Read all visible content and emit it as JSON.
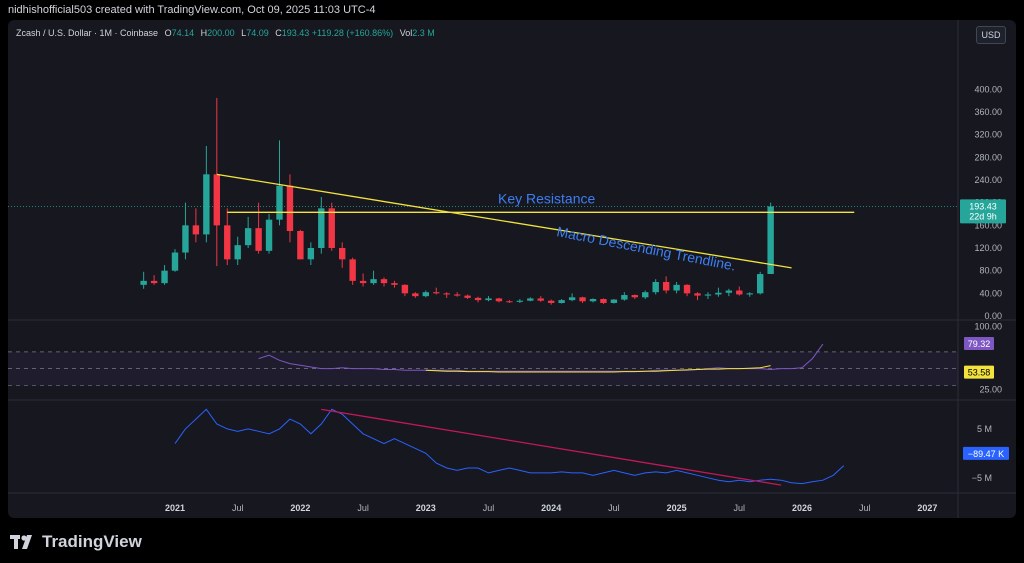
{
  "header": {
    "text": "nidhishofficial503 created with TradingView.com, Oct 09, 2025 11:03 UTC-4"
  },
  "legend": {
    "symbol": "Zcash / U.S. Dollar · 1M · Coinbase",
    "open_label": "O",
    "open": "74.14",
    "high_label": "H",
    "high": "200.00",
    "low_label": "L",
    "low": "74.09",
    "close_label": "C",
    "close": "193.43",
    "change": "+119.28 (+160.86%)",
    "vol_label": "Vol",
    "vol": "2.3 M"
  },
  "currency_button": "USD",
  "footer": {
    "logo_text": "TradingView"
  },
  "colors": {
    "up": "#26a69a",
    "down": "#f23645",
    "trendline": "#f2e33d",
    "annotation": "#3d7ef2",
    "rsi": "#7e57c2",
    "rsi_ma": "#f2e33d",
    "macd": "#2962ff",
    "macd_trend": "#c2185b",
    "background": "#16171f"
  },
  "chart_data": [
    {
      "type": "candlestick",
      "title": "Zcash / U.S. Dollar · 1M · Coinbase",
      "ylim": [
        0,
        420
      ],
      "y_ticks": [
        "400.00",
        "360.00",
        "320.00",
        "280.00",
        "240.00",
        "200.00",
        "160.00",
        "120.00",
        "80.00",
        "40.00",
        "0.00"
      ],
      "x_ticks": [
        "2021",
        "Jul",
        "2022",
        "Jul",
        "2023",
        "Jul",
        "2024",
        "Jul",
        "2025",
        "Jul",
        "2026",
        "Jul",
        "2027"
      ],
      "price_tag": {
        "value": "193.43",
        "countdown": "22d 9h"
      },
      "annotations": [
        "Key Resistance",
        "Macro Descending Trendline."
      ],
      "lines": [
        {
          "name": "descending trendline",
          "from": [
            "2021-05",
            250
          ],
          "to": [
            "2025-12",
            85
          ]
        },
        {
          "name": "key resistance",
          "value": 183,
          "from": "2021-06",
          "to": "2026-06"
        }
      ],
      "candles": [
        {
          "t": "2020-10",
          "o": 55,
          "h": 78,
          "l": 48,
          "c": 62
        },
        {
          "t": "2020-11",
          "o": 62,
          "h": 72,
          "l": 55,
          "c": 58
        },
        {
          "t": "2020-12",
          "o": 58,
          "h": 90,
          "l": 55,
          "c": 80
        },
        {
          "t": "2021-01",
          "o": 80,
          "h": 118,
          "l": 78,
          "c": 112
        },
        {
          "t": "2021-02",
          "o": 112,
          "h": 200,
          "l": 100,
          "c": 160
        },
        {
          "t": "2021-03",
          "o": 160,
          "h": 190,
          "l": 130,
          "c": 144
        },
        {
          "t": "2021-04",
          "o": 144,
          "h": 300,
          "l": 130,
          "c": 250
        },
        {
          "t": "2021-05",
          "o": 250,
          "h": 385,
          "l": 88,
          "c": 160
        },
        {
          "t": "2021-06",
          "o": 160,
          "h": 190,
          "l": 90,
          "c": 100
        },
        {
          "t": "2021-07",
          "o": 100,
          "h": 140,
          "l": 90,
          "c": 125
        },
        {
          "t": "2021-08",
          "o": 125,
          "h": 175,
          "l": 120,
          "c": 155
        },
        {
          "t": "2021-09",
          "o": 155,
          "h": 200,
          "l": 110,
          "c": 115
        },
        {
          "t": "2021-10",
          "o": 115,
          "h": 180,
          "l": 110,
          "c": 170
        },
        {
          "t": "2021-11",
          "o": 170,
          "h": 310,
          "l": 160,
          "c": 230
        },
        {
          "t": "2021-12",
          "o": 230,
          "h": 250,
          "l": 130,
          "c": 150
        },
        {
          "t": "2022-01",
          "o": 150,
          "h": 152,
          "l": 100,
          "c": 100
        },
        {
          "t": "2022-02",
          "o": 100,
          "h": 130,
          "l": 90,
          "c": 120
        },
        {
          "t": "2022-03",
          "o": 120,
          "h": 210,
          "l": 110,
          "c": 190
        },
        {
          "t": "2022-04",
          "o": 190,
          "h": 200,
          "l": 115,
          "c": 120
        },
        {
          "t": "2022-05",
          "o": 120,
          "h": 130,
          "l": 85,
          "c": 100
        },
        {
          "t": "2022-06",
          "o": 100,
          "h": 103,
          "l": 55,
          "c": 62
        },
        {
          "t": "2022-07",
          "o": 62,
          "h": 75,
          "l": 52,
          "c": 58
        },
        {
          "t": "2022-08",
          "o": 58,
          "h": 80,
          "l": 55,
          "c": 65
        },
        {
          "t": "2022-09",
          "o": 65,
          "h": 68,
          "l": 52,
          "c": 58
        },
        {
          "t": "2022-10",
          "o": 58,
          "h": 62,
          "l": 50,
          "c": 55
        },
        {
          "t": "2022-11",
          "o": 55,
          "h": 56,
          "l": 35,
          "c": 40
        },
        {
          "t": "2022-12",
          "o": 40,
          "h": 42,
          "l": 32,
          "c": 35
        },
        {
          "t": "2023-01",
          "o": 35,
          "h": 45,
          "l": 33,
          "c": 42
        },
        {
          "t": "2023-02",
          "o": 42,
          "h": 50,
          "l": 38,
          "c": 40
        },
        {
          "t": "2023-03",
          "o": 40,
          "h": 42,
          "l": 32,
          "c": 38
        },
        {
          "t": "2023-04",
          "o": 38,
          "h": 42,
          "l": 34,
          "c": 36
        },
        {
          "t": "2023-05",
          "o": 36,
          "h": 38,
          "l": 30,
          "c": 32
        },
        {
          "t": "2023-06",
          "o": 32,
          "h": 34,
          "l": 24,
          "c": 28
        },
        {
          "t": "2023-07",
          "o": 28,
          "h": 35,
          "l": 26,
          "c": 31
        },
        {
          "t": "2023-08",
          "o": 31,
          "h": 32,
          "l": 24,
          "c": 26
        },
        {
          "t": "2023-09",
          "o": 26,
          "h": 28,
          "l": 23,
          "c": 25
        },
        {
          "t": "2023-10",
          "o": 25,
          "h": 30,
          "l": 23,
          "c": 27
        },
        {
          "t": "2023-11",
          "o": 27,
          "h": 33,
          "l": 26,
          "c": 31
        },
        {
          "t": "2023-12",
          "o": 31,
          "h": 35,
          "l": 25,
          "c": 27
        },
        {
          "t": "2024-01",
          "o": 27,
          "h": 29,
          "l": 20,
          "c": 23
        },
        {
          "t": "2024-02",
          "o": 23,
          "h": 30,
          "l": 22,
          "c": 28
        },
        {
          "t": "2024-03",
          "o": 28,
          "h": 40,
          "l": 26,
          "c": 33
        },
        {
          "t": "2024-04",
          "o": 33,
          "h": 34,
          "l": 23,
          "c": 26
        },
        {
          "t": "2024-05",
          "o": 26,
          "h": 31,
          "l": 24,
          "c": 30
        },
        {
          "t": "2024-06",
          "o": 30,
          "h": 31,
          "l": 21,
          "c": 23
        },
        {
          "t": "2024-07",
          "o": 23,
          "h": 30,
          "l": 22,
          "c": 29
        },
        {
          "t": "2024-08",
          "o": 29,
          "h": 42,
          "l": 27,
          "c": 37
        },
        {
          "t": "2024-09",
          "o": 37,
          "h": 38,
          "l": 30,
          "c": 33
        },
        {
          "t": "2024-10",
          "o": 33,
          "h": 45,
          "l": 30,
          "c": 42
        },
        {
          "t": "2024-11",
          "o": 42,
          "h": 65,
          "l": 38,
          "c": 60
        },
        {
          "t": "2024-12",
          "o": 60,
          "h": 70,
          "l": 40,
          "c": 45
        },
        {
          "t": "2025-01",
          "o": 45,
          "h": 60,
          "l": 40,
          "c": 55
        },
        {
          "t": "2025-02",
          "o": 55,
          "h": 56,
          "l": 35,
          "c": 40
        },
        {
          "t": "2025-03",
          "o": 40,
          "h": 42,
          "l": 28,
          "c": 36
        },
        {
          "t": "2025-04",
          "o": 36,
          "h": 42,
          "l": 30,
          "c": 38
        },
        {
          "t": "2025-05",
          "o": 38,
          "h": 50,
          "l": 34,
          "c": 41
        },
        {
          "t": "2025-06",
          "o": 41,
          "h": 48,
          "l": 35,
          "c": 45
        },
        {
          "t": "2025-07",
          "o": 45,
          "h": 52,
          "l": 36,
          "c": 38
        },
        {
          "t": "2025-08",
          "o": 38,
          "h": 42,
          "l": 34,
          "c": 40
        },
        {
          "t": "2025-09",
          "o": 40,
          "h": 78,
          "l": 38,
          "c": 74
        },
        {
          "t": "2025-10",
          "o": 74.14,
          "h": 200,
          "l": 74.09,
          "c": 193.43
        }
      ]
    },
    {
      "type": "line",
      "name": "RSI",
      "ylim": [
        15,
        108
      ],
      "y_ticks": [
        "100.00",
        "25.00"
      ],
      "band": [
        30,
        70
      ],
      "tags": [
        "79.32",
        "53.58"
      ],
      "series": [
        {
          "x_start": "2021-09",
          "values": [
            62,
            66,
            60,
            56,
            54,
            52,
            50,
            50,
            51,
            50,
            50,
            50,
            49,
            49,
            48,
            48,
            48,
            48,
            48,
            48,
            47,
            47,
            47,
            47,
            47,
            47,
            47,
            47,
            47,
            47,
            47,
            47,
            47,
            47,
            47,
            47,
            47,
            47,
            48,
            48,
            48,
            48,
            49,
            50,
            51,
            50,
            50,
            50,
            50,
            49,
            50,
            50,
            51,
            62,
            79.32
          ]
        },
        {
          "x_start": "2023-01",
          "values": [
            48,
            47.5,
            47,
            47,
            46.5,
            46.5,
            46.5,
            46,
            46,
            46,
            46,
            46,
            46,
            46,
            46,
            46,
            46,
            46,
            46,
            46.5,
            46.5,
            47,
            47,
            47.5,
            48,
            48.5,
            49,
            49.5,
            49.5,
            50,
            50,
            50.5,
            51,
            53.58
          ]
        }
      ]
    },
    {
      "type": "line",
      "name": "MACD",
      "ylim": [
        -7.5,
        10.5
      ],
      "y_ticks": [
        "5 M",
        "−5 M"
      ],
      "tag": "−89.47 K",
      "series": [
        {
          "x_start": "2021-01",
          "values": [
            2,
            5,
            7,
            9,
            6,
            5,
            4.5,
            5,
            4.5,
            4,
            5,
            7,
            6,
            4,
            6,
            9,
            8,
            6,
            4,
            3,
            2,
            3,
            2,
            1,
            0,
            -2,
            -3,
            -3.5,
            -3,
            -3,
            -4,
            -3.5,
            -3,
            -3.5,
            -4,
            -4,
            -4,
            -3.8,
            -4,
            -4,
            -4.5,
            -4,
            -3.5,
            -4,
            -4.5,
            -4,
            -3.8,
            -4,
            -3.5,
            -4,
            -4.5,
            -5,
            -5.5,
            -5.8,
            -5.5,
            -5.8,
            -5.5,
            -5.3,
            -5.5,
            -6,
            -6.2,
            -5.8,
            -5.5,
            -4.5,
            -2.5
          ]
        },
        {
          "name": "macd trendline",
          "from": [
            "2022-03",
            9
          ],
          "to": [
            "2025-11",
            -6.5
          ]
        }
      ]
    }
  ]
}
